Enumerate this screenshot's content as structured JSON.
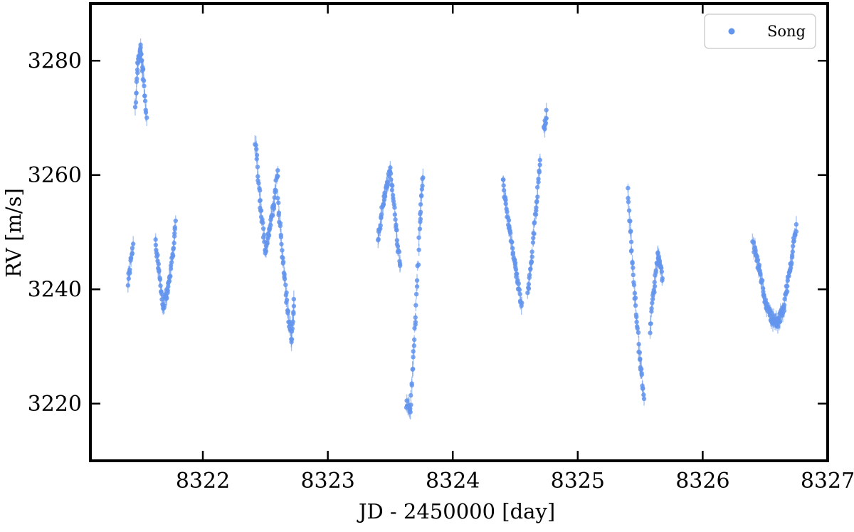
{
  "chart_data": {
    "type": "scatter",
    "xlabel": "JD - 2450000 [day]",
    "ylabel": "RV [m/s]",
    "xlim": [
      8321.1,
      8327.0
    ],
    "ylim": [
      3210,
      3290
    ],
    "xticks": [
      8322,
      8323,
      8324,
      8325,
      8326,
      8327
    ],
    "yticks": [
      3220,
      3240,
      3260,
      3280
    ],
    "grid": false,
    "legend": {
      "position": "top-right",
      "entries": [
        "Song"
      ]
    },
    "series": [
      {
        "name": "Song",
        "color": "#6495ed",
        "segments": [
          {
            "x": [
              8321.4,
              8321.44
            ],
            "y": [
              3241,
              3248
            ]
          },
          {
            "x": [
              8321.46,
              8321.48,
              8321.5,
              8321.52,
              8321.55
            ],
            "y": [
              3272,
              3280,
              3282,
              3278,
              3270
            ]
          },
          {
            "x": [
              8321.62,
              8321.65,
              8321.68,
              8321.72,
              8321.76,
              8321.78
            ],
            "y": [
              3249,
              3243,
              3237,
              3240,
              3246,
              3252
            ]
          },
          {
            "x": [
              8322.42,
              8322.46,
              8322.5,
              8322.53,
              8322.57,
              8322.6
            ],
            "y": [
              3266,
              3255,
              3247,
              3250,
              3255,
              3261
            ]
          },
          {
            "x": [
              8322.6,
              8322.64,
              8322.68,
              8322.71,
              8322.73
            ],
            "y": [
              3256,
              3245,
              3236,
              3231,
              3238
            ]
          },
          {
            "x": [
              8323.4,
              8323.45,
              8323.5,
              8323.55,
              8323.58
            ],
            "y": [
              3249,
              3256,
              3261,
              3250,
              3244
            ]
          },
          {
            "x": [
              8323.63,
              8323.66,
              8323.7,
              8323.74,
              8323.76
            ],
            "y": [
              3220,
              3219,
              3234,
              3253,
              3260
            ]
          },
          {
            "x": [
              8324.4,
              8324.45,
              8324.5,
              8324.55
            ],
            "y": [
              3259,
              3251,
              3244,
              3237
            ]
          },
          {
            "x": [
              8324.6,
              8324.63,
              8324.67,
              8324.7
            ],
            "y": [
              3239,
              3245,
              3255,
              3263
            ]
          },
          {
            "x": [
              8324.73,
              8324.75
            ],
            "y": [
              3268,
              3271
            ]
          },
          {
            "x": [
              8325.4,
              8325.45,
              8325.5,
              8325.53
            ],
            "y": [
              3257,
              3241,
              3227,
              3221
            ]
          },
          {
            "x": [
              8325.58,
              8325.61,
              8325.64,
              8325.68
            ],
            "y": [
              3233,
              3240,
              3246,
              3242
            ]
          },
          {
            "x": [
              8326.4,
              8326.45,
              8326.5,
              8326.55,
              8326.6,
              8326.65,
              8326.7,
              8326.75
            ],
            "y": [
              3248,
              3244,
              3238,
              3235,
              3234,
              3237,
              3244,
              3251
            ]
          }
        ]
      }
    ]
  }
}
